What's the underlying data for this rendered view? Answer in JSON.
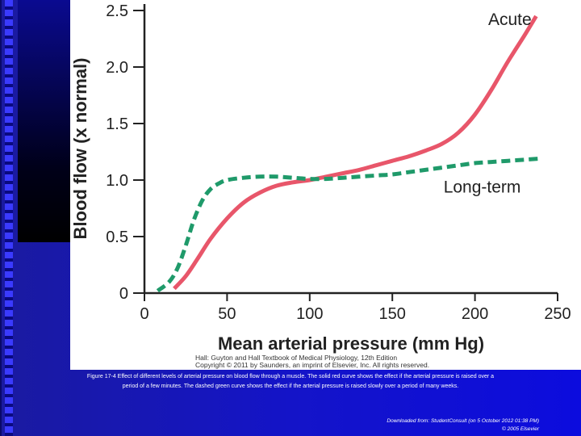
{
  "chart_data": {
    "type": "line",
    "title": "",
    "xlabel": "Mean arterial pressure (mm Hg)",
    "ylabel": "Blood flow (x normal)",
    "xlim": [
      0,
      250
    ],
    "ylim": [
      0,
      2.5
    ],
    "x_ticks": [
      {
        "value": 0,
        "label": "0"
      },
      {
        "value": 50,
        "label": "50"
      },
      {
        "value": 100,
        "label": "100"
      },
      {
        "value": 150,
        "label": "150"
      },
      {
        "value": 200,
        "label": "200"
      },
      {
        "value": 250,
        "label": "250"
      }
    ],
    "y_ticks": [
      {
        "value": 0,
        "label": "0"
      },
      {
        "value": 0.5,
        "label": "0.5"
      },
      {
        "value": 1.0,
        "label": "1.0"
      },
      {
        "value": 1.5,
        "label": "1.5"
      },
      {
        "value": 2.0,
        "label": "2.0"
      },
      {
        "value": 2.5,
        "label": "2.5"
      }
    ],
    "grid": false,
    "series": [
      {
        "name": "Acute",
        "color": "#e8566a",
        "dash": "solid",
        "points": [
          [
            18,
            0.04
          ],
          [
            25,
            0.15
          ],
          [
            32,
            0.3
          ],
          [
            40,
            0.48
          ],
          [
            50,
            0.66
          ],
          [
            60,
            0.8
          ],
          [
            70,
            0.89
          ],
          [
            80,
            0.95
          ],
          [
            90,
            0.98
          ],
          [
            100,
            1.0
          ],
          [
            110,
            1.03
          ],
          [
            120,
            1.06
          ],
          [
            130,
            1.09
          ],
          [
            140,
            1.13
          ],
          [
            150,
            1.17
          ],
          [
            160,
            1.21
          ],
          [
            170,
            1.26
          ],
          [
            180,
            1.32
          ],
          [
            190,
            1.42
          ],
          [
            200,
            1.58
          ],
          [
            210,
            1.8
          ],
          [
            220,
            2.05
          ],
          [
            230,
            2.28
          ],
          [
            237,
            2.45
          ]
        ]
      },
      {
        "name": "Long-term",
        "color": "#1f9a6a",
        "dash": "dashed",
        "points": [
          [
            8,
            0.02
          ],
          [
            15,
            0.1
          ],
          [
            20,
            0.22
          ],
          [
            25,
            0.42
          ],
          [
            30,
            0.65
          ],
          [
            35,
            0.82
          ],
          [
            40,
            0.92
          ],
          [
            45,
            0.97
          ],
          [
            50,
            1.0
          ],
          [
            60,
            1.02
          ],
          [
            70,
            1.03
          ],
          [
            80,
            1.03
          ],
          [
            90,
            1.02
          ],
          [
            100,
            1.01
          ],
          [
            110,
            1.01
          ],
          [
            120,
            1.02
          ],
          [
            130,
            1.03
          ],
          [
            140,
            1.04
          ],
          [
            150,
            1.05
          ],
          [
            160,
            1.07
          ],
          [
            170,
            1.09
          ],
          [
            180,
            1.11
          ],
          [
            190,
            1.13
          ],
          [
            200,
            1.15
          ],
          [
            210,
            1.16
          ],
          [
            220,
            1.17
          ],
          [
            230,
            1.18
          ],
          [
            240,
            1.19
          ]
        ]
      }
    ],
    "annotations": [
      {
        "text": "Acute",
        "x": 208,
        "y": 2.37
      },
      {
        "text": "Long-term",
        "x": 181,
        "y": 0.89
      }
    ]
  },
  "credit": {
    "line1": "Hall: Guyton and Hall Textbook of Medical Physiology, 12th Edition",
    "line2": "Copyright © 2011 by Saunders, an imprint of Elsevier, Inc. All rights reserved."
  },
  "caption": {
    "line1": "Figure 17-4 Effect of different levels of arterial pressure on blood flow through a muscle. The solid red curve shows the effect if the arterial pressure is raised over a",
    "line2": "period of a few minutes. The dashed green curve shows the effect if the arterial pressure is raised slowly over a period of many weeks."
  },
  "footer": {
    "line1": "Downloaded from: StudentConsult (on 5 October 2012 01:38 PM)",
    "line2": "© 2005 Elsevier"
  }
}
